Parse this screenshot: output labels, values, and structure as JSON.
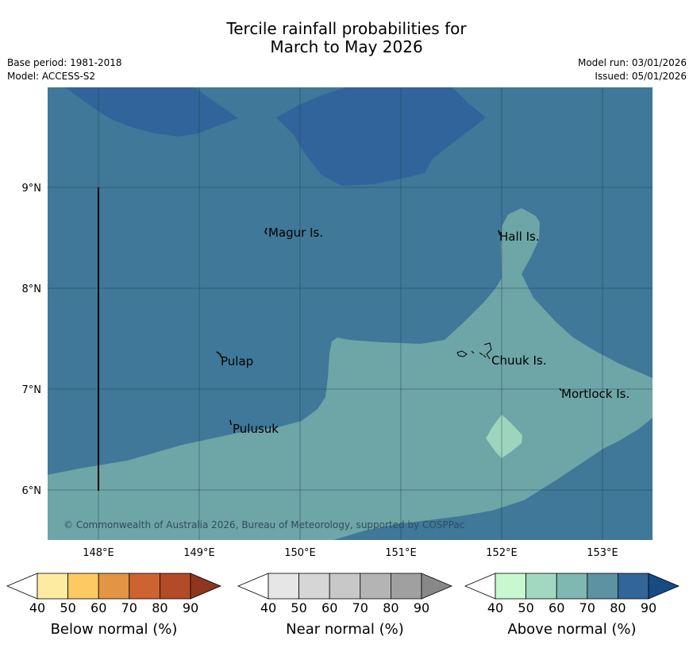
{
  "title": {
    "line1": "Tercile rainfall probabilities for",
    "line2": "March to May 2026"
  },
  "meta": {
    "base_period": "Base period: 1981-2018",
    "model": "Model: ACCESS-S2",
    "model_run": "Model run: 03/01/2026",
    "issued": "Issued: 05/01/2026"
  },
  "map": {
    "copyright": "© Commonwealth of Australia 2026, Bureau of Meteorology, supported by COSPPac",
    "lon_ticks": [
      "148°E",
      "149°E",
      "150°E",
      "151°E",
      "152°E",
      "153°E"
    ],
    "lat_ticks": [
      "9°N",
      "8°N",
      "7°N",
      "6°N"
    ],
    "places": [
      "Magur Is.",
      "Hall Is.",
      "Pulap",
      "Chuuk Is.",
      "Mortlock Is.",
      "Pulusuk"
    ],
    "colors": {
      "above_80_90": "#31649a",
      "above_70_80": "#3f7898",
      "above_60_70": "#6ea5a6",
      "above_50_60": "#9dd4bd"
    }
  },
  "legends": [
    {
      "label": "Below normal (%)",
      "ticks": [
        "40",
        "50",
        "60",
        "70",
        "80",
        "90"
      ],
      "colors": [
        "#ffffff",
        "#fdeca0",
        "#fcc963",
        "#e19545",
        "#cc6331",
        "#b34b27",
        "#8f3520"
      ]
    },
    {
      "label": "Near normal (%)",
      "ticks": [
        "40",
        "50",
        "60",
        "70",
        "80",
        "90"
      ],
      "colors": [
        "#ffffff",
        "#e6e6e6",
        "#d6d6d6",
        "#c8c8c8",
        "#b4b4b4",
        "#a0a0a0",
        "#888888"
      ]
    },
    {
      "label": "Above normal (%)",
      "ticks": [
        "40",
        "50",
        "60",
        "70",
        "80",
        "90"
      ],
      "colors": [
        "#ffffff",
        "#c8f8d0",
        "#a2d8c0",
        "#7eb8b0",
        "#5c92a2",
        "#32659a",
        "#174b84"
      ]
    }
  ]
}
